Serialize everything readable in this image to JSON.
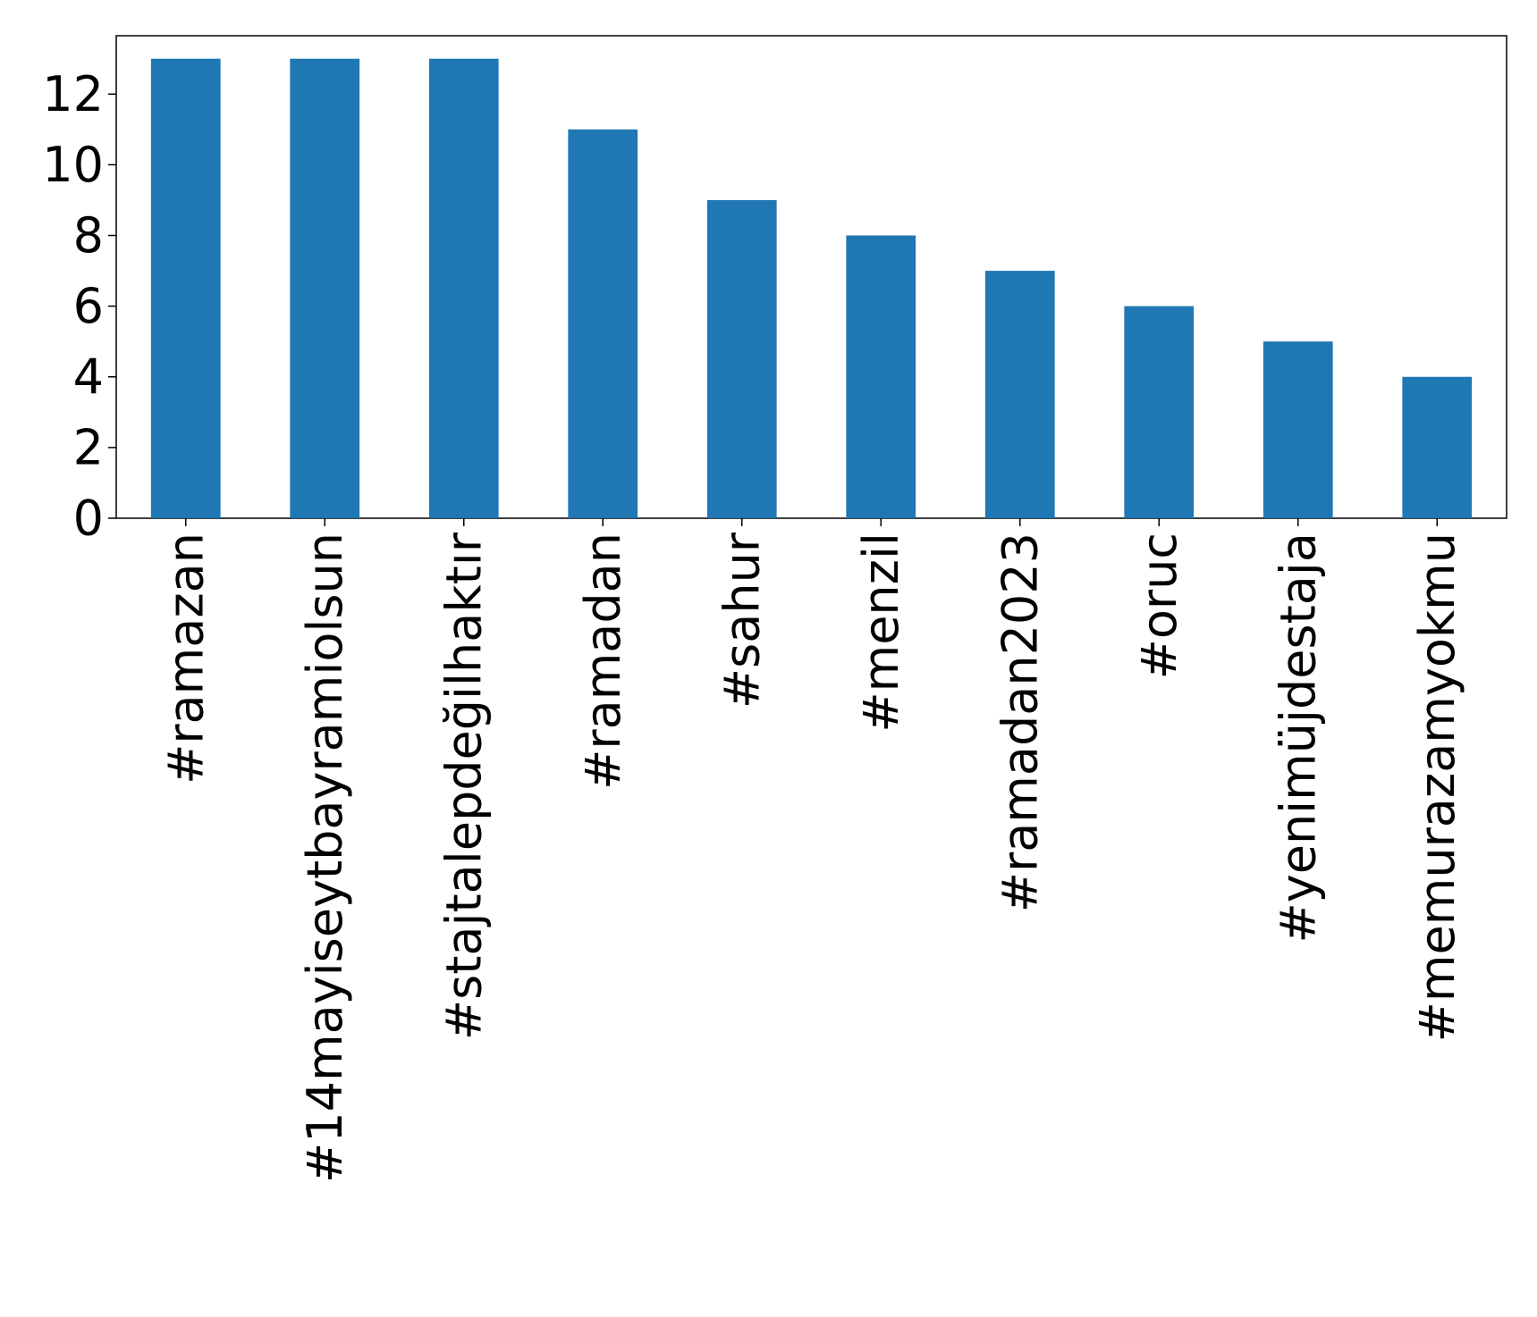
{
  "chart_data": {
    "type": "bar",
    "title": "",
    "xlabel": "",
    "ylabel": "",
    "categories": [
      "#ramazan",
      "#14mayiseytbayramiolsun",
      "#stajtalepdeğilhaktır",
      "#ramadan",
      "#sahur",
      "#menzil",
      "#ramadan2023",
      "#oruc",
      "#yenimüjdestaja",
      "#memurazamyokmu"
    ],
    "values": [
      13,
      13,
      13,
      11,
      9,
      8,
      7,
      6,
      5,
      4
    ],
    "ylim": [
      0,
      13.65
    ],
    "yticks": [
      "0",
      "2",
      "4",
      "6",
      "8",
      "10",
      "12"
    ],
    "grid": false,
    "legend": "none",
    "colors": {
      "bar": "#1f77b4",
      "axes": "#000000",
      "background": "#ffffff"
    }
  }
}
